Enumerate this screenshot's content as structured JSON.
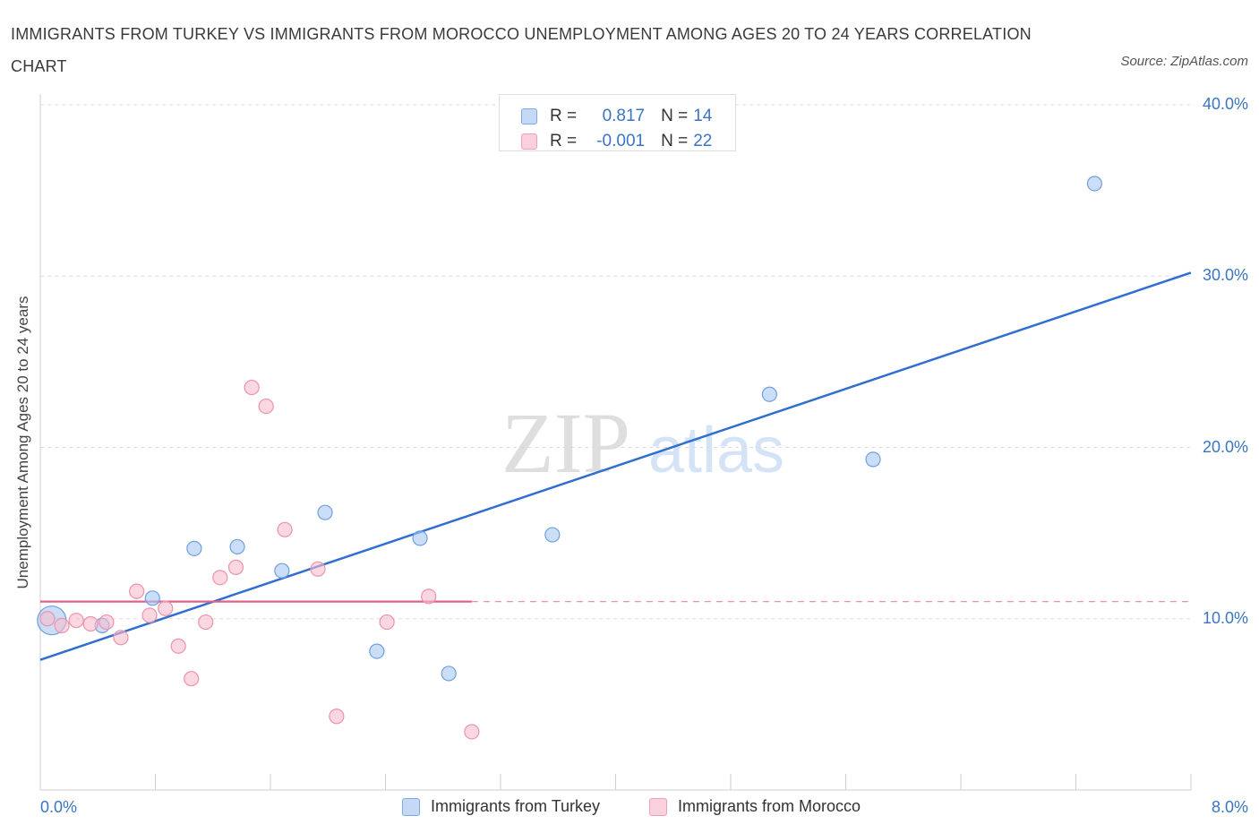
{
  "title": "IMMIGRANTS FROM TURKEY VS IMMIGRANTS FROM MOROCCO UNEMPLOYMENT AMONG AGES 20 TO 24 YEARS CORRELATION CHART",
  "source": "Source: ZipAtlas.com",
  "watermark": {
    "zip": "ZIP",
    "atlas": "atlas"
  },
  "legend_box": {
    "rows": [
      {
        "r_label": "R =",
        "r_value": "0.817",
        "n_label": "N =",
        "n_value": "14",
        "color": "#a9c8f2"
      },
      {
        "r_label": "R =",
        "r_value": "-0.001",
        "n_label": "N =",
        "n_value": "22",
        "color": "#f6bccd"
      }
    ]
  },
  "chart_data": {
    "type": "scatter",
    "title": "IMMIGRANTS FROM TURKEY VS IMMIGRANTS FROM MOROCCO UNEMPLOYMENT AMONG AGES 20 TO 24 YEARS CORRELATION CHART",
    "xlabel": "",
    "ylabel": "Unemployment Among Ages 20 to 24 years",
    "xlim": [
      0,
      8
    ],
    "ylim": [
      0,
      40
    ],
    "x_tick_labels": [
      "0.0%",
      "8.0%"
    ],
    "y_ticks": [
      10,
      20,
      30,
      40
    ],
    "y_tick_labels": [
      "10.0%",
      "20.0%",
      "30.0%",
      "40.0%"
    ],
    "grid": true,
    "legend_position": "bottom",
    "series": [
      {
        "name": "Immigrants from Turkey",
        "color": "#a9c8f2",
        "stroke": "#6f9fe0",
        "line_color": "#2f6fcf",
        "points": [
          [
            0.08,
            9.9
          ],
          [
            0.43,
            9.6
          ],
          [
            0.78,
            11.2
          ],
          [
            1.07,
            14.1
          ],
          [
            1.37,
            14.2
          ],
          [
            1.68,
            12.8
          ],
          [
            1.98,
            16.2
          ],
          [
            2.34,
            8.1
          ],
          [
            2.64,
            14.7
          ],
          [
            2.84,
            6.8
          ],
          [
            3.56,
            14.9
          ],
          [
            5.07,
            23.1
          ],
          [
            5.79,
            19.3
          ],
          [
            7.33,
            35.4
          ]
        ],
        "trend": {
          "x": [
            0,
            8
          ],
          "y": [
            7.6,
            30.2
          ]
        }
      },
      {
        "name": "Immigrants from Morocco",
        "color": "#f6bccd",
        "stroke": "#eb93ad",
        "line_color": "#e0628a",
        "points": [
          [
            0.05,
            10.0
          ],
          [
            0.15,
            9.6
          ],
          [
            0.25,
            9.9
          ],
          [
            0.35,
            9.7
          ],
          [
            0.46,
            9.8
          ],
          [
            0.56,
            8.9
          ],
          [
            0.67,
            11.6
          ],
          [
            0.76,
            10.2
          ],
          [
            0.87,
            10.6
          ],
          [
            0.96,
            8.4
          ],
          [
            1.05,
            6.5
          ],
          [
            1.15,
            9.8
          ],
          [
            1.25,
            12.4
          ],
          [
            1.36,
            13.0
          ],
          [
            1.47,
            23.5
          ],
          [
            1.57,
            22.4
          ],
          [
            1.7,
            15.2
          ],
          [
            1.93,
            12.9
          ],
          [
            2.06,
            4.3
          ],
          [
            2.41,
            9.8
          ],
          [
            2.7,
            11.3
          ],
          [
            3.0,
            3.4
          ]
        ],
        "trend": {
          "x": [
            0,
            3.0
          ],
          "y": [
            11.0,
            11.0
          ],
          "dashed_extension": {
            "x": [
              3.0,
              8
            ],
            "y": [
              11.0,
              11.0
            ]
          }
        }
      }
    ]
  }
}
